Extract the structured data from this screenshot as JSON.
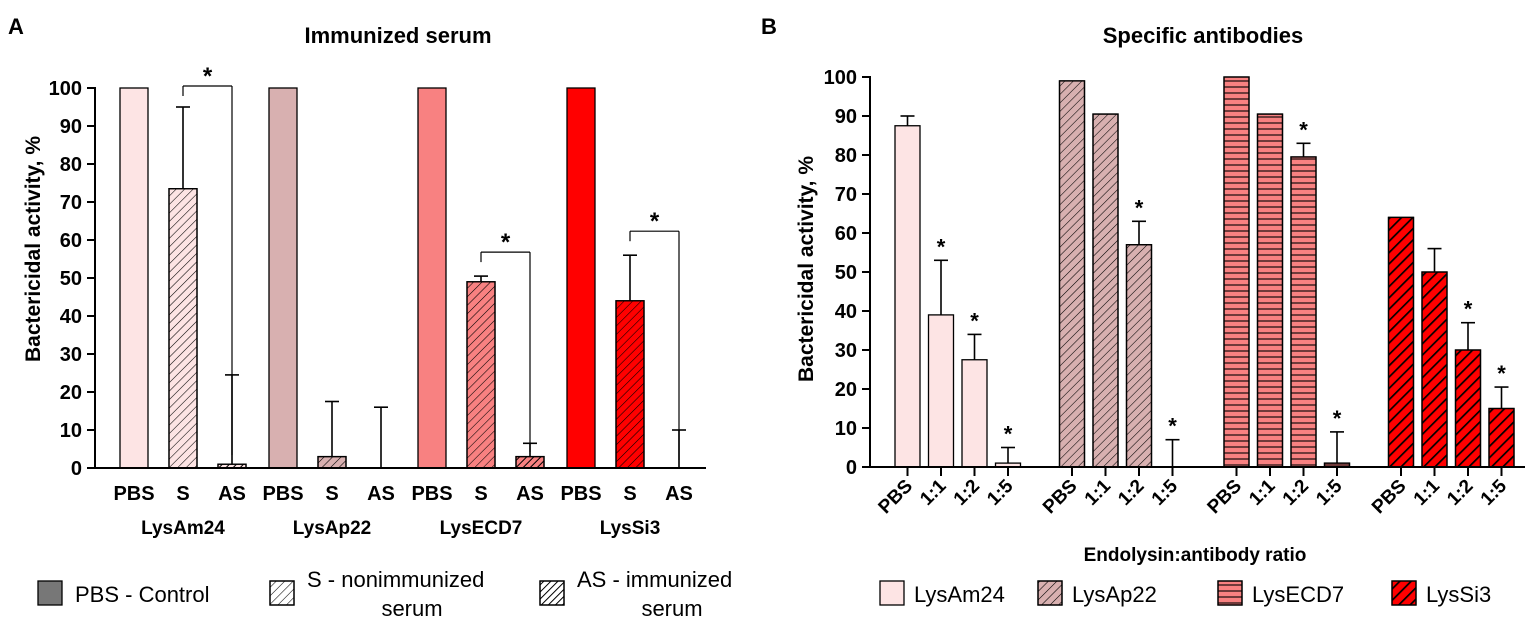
{
  "panelA": {
    "letter": "A",
    "chart_data": {
      "type": "bar",
      "title": "Immunized serum",
      "ylabel": "Bactericidal activity, %",
      "ylim": [
        0,
        100
      ],
      "yticks": [
        0,
        10,
        20,
        30,
        40,
        50,
        60,
        70,
        80,
        90,
        100
      ],
      "tick_labels": [
        "PBS",
        "S",
        "AS"
      ],
      "groups": [
        {
          "name": "LysAm24",
          "color": "#fde4e4",
          "bars": [
            {
              "label": "PBS",
              "value": 100,
              "err": 0
            },
            {
              "label": "S",
              "value": 73.5,
              "err": 21.5
            },
            {
              "label": "AS",
              "value": 1,
              "err": 23.5
            }
          ],
          "significance": {
            "from": 1,
            "to": 2,
            "symbol": "*"
          }
        },
        {
          "name": "LysAp22",
          "color": "#d8b0b0",
          "bars": [
            {
              "label": "PBS",
              "value": 100,
              "err": 0
            },
            {
              "label": "S",
              "value": 3,
              "err": 14.5
            },
            {
              "label": "AS",
              "value": 0,
              "err": 16
            }
          ],
          "significance": null
        },
        {
          "name": "LysECD7",
          "color": "#f88181",
          "bars": [
            {
              "label": "PBS",
              "value": 100,
              "err": 0
            },
            {
              "label": "S",
              "value": 49,
              "err": 1.5
            },
            {
              "label": "AS",
              "value": 3,
              "err": 3.5
            }
          ],
          "significance": {
            "from": 1,
            "to": 2,
            "symbol": "*"
          }
        },
        {
          "name": "LysSi3",
          "color": "#ff0000",
          "bars": [
            {
              "label": "PBS",
              "value": 100,
              "err": 0
            },
            {
              "label": "S",
              "value": 44,
              "err": 12
            },
            {
              "label": "AS",
              "value": 0,
              "err": 10
            }
          ],
          "significance": {
            "from": 1,
            "to": 2,
            "symbol": "*"
          }
        }
      ]
    },
    "legend": [
      {
        "lines": [
          "PBS - Control"
        ],
        "pattern": "solid"
      },
      {
        "lines": [
          "S - nonimmunized",
          "serum"
        ],
        "pattern": "sparse"
      },
      {
        "lines": [
          "AS - immunized",
          "serum"
        ],
        "pattern": "dense"
      }
    ],
    "legend_swatch_color": "#777777"
  },
  "panelB": {
    "letter": "B",
    "chart_data": {
      "type": "bar",
      "title": "Specific antibodies",
      "xlabel": "Endolysin:antibody ratio",
      "ylabel": "Bactericidal activity, %",
      "ylim": [
        0,
        100
      ],
      "yticks": [
        0,
        10,
        20,
        30,
        40,
        50,
        60,
        70,
        80,
        90,
        100
      ],
      "categories": [
        "PBS",
        "1:1",
        "1:2",
        "1:5"
      ],
      "series": [
        {
          "name": "LysAm24",
          "color": "#fde4e4",
          "pattern": "none",
          "values": [
            87.5,
            39,
            27.5,
            1
          ],
          "err": [
            2.5,
            14,
            6.5,
            4
          ],
          "stars": [
            false,
            true,
            true,
            true
          ]
        },
        {
          "name": "LysAp22",
          "color": "#d8b0b0",
          "pattern": "diag",
          "values": [
            99,
            90.5,
            57,
            0
          ],
          "err": [
            0,
            0,
            6,
            7
          ],
          "stars": [
            false,
            false,
            true,
            true
          ]
        },
        {
          "name": "LysECD7",
          "color": "#f88181",
          "pattern": "horiz",
          "values": [
            100,
            90.5,
            79.5,
            1
          ],
          "err": [
            0,
            0,
            3.5,
            8
          ],
          "stars": [
            false,
            false,
            true,
            true
          ]
        },
        {
          "name": "LysSi3",
          "color": "#ff0000",
          "pattern": "thick",
          "values": [
            64,
            50,
            30,
            15
          ],
          "err": [
            0,
            6,
            7,
            5.5
          ],
          "stars": [
            false,
            false,
            true,
            true
          ]
        }
      ]
    }
  }
}
